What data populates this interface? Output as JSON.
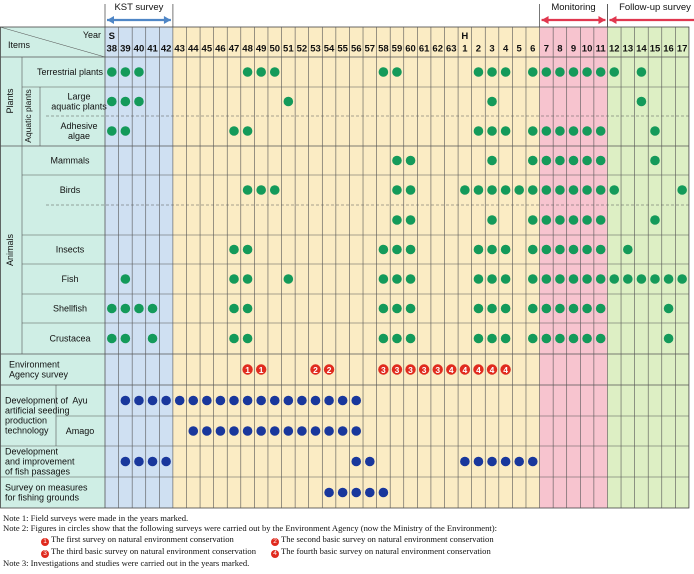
{
  "chart_data": {
    "type": "table",
    "periods": [
      {
        "label": "KST survey",
        "from": "S38",
        "to": "S42"
      },
      {
        "label": "Monitoring",
        "from": "H7",
        "to": "H11"
      },
      {
        "label": "Follow-up survey",
        "from": "H12",
        "to": "H17"
      }
    ],
    "header": {
      "items": "Items",
      "year": "Year",
      "era_showa": "S",
      "era_heisei": "H"
    },
    "years": [
      "38",
      "39",
      "40",
      "41",
      "42",
      "43",
      "44",
      "45",
      "46",
      "47",
      "48",
      "49",
      "50",
      "51",
      "52",
      "53",
      "54",
      "55",
      "56",
      "57",
      "58",
      "59",
      "60",
      "61",
      "62",
      "63",
      "1",
      "2",
      "3",
      "4",
      "5",
      "6",
      "7",
      "8",
      "9",
      "10",
      "11",
      "12",
      "13",
      "14",
      "15",
      "16",
      "17"
    ],
    "groups": {
      "plants": "Plants",
      "aquatic_plants": "Aquatic plants",
      "animals": "Animals"
    },
    "rows": [
      {
        "label": "Terrestrial plants",
        "marks": [
          1,
          1,
          1,
          0,
          0,
          0,
          0,
          0,
          0,
          0,
          1,
          1,
          1,
          0,
          0,
          0,
          0,
          0,
          0,
          0,
          1,
          1,
          0,
          0,
          0,
          0,
          0,
          1,
          1,
          1,
          0,
          1,
          1,
          1,
          1,
          1,
          1,
          1,
          0,
          1,
          0,
          0,
          0
        ]
      },
      {
        "label": "Large aquatic plants",
        "marks": [
          1,
          1,
          1,
          0,
          0,
          0,
          0,
          0,
          0,
          0,
          0,
          0,
          0,
          1,
          0,
          0,
          0,
          0,
          0,
          0,
          0,
          0,
          0,
          0,
          0,
          0,
          0,
          0,
          1,
          0,
          0,
          0,
          0,
          0,
          0,
          0,
          0,
          0,
          0,
          1,
          0,
          0,
          0
        ]
      },
      {
        "label": "Adhesive algae",
        "marks": [
          1,
          1,
          0,
          0,
          0,
          0,
          0,
          0,
          0,
          1,
          1,
          0,
          0,
          0,
          0,
          0,
          0,
          0,
          0,
          0,
          0,
          0,
          0,
          0,
          0,
          0,
          0,
          1,
          1,
          1,
          0,
          1,
          1,
          1,
          1,
          1,
          1,
          0,
          0,
          0,
          1,
          0,
          0
        ]
      },
      {
        "label": "Mammals",
        "marks": [
          0,
          0,
          0,
          0,
          0,
          0,
          0,
          0,
          0,
          0,
          0,
          0,
          0,
          0,
          0,
          0,
          0,
          0,
          0,
          0,
          0,
          1,
          1,
          0,
          0,
          0,
          0,
          0,
          1,
          0,
          0,
          1,
          1,
          1,
          1,
          1,
          1,
          0,
          0,
          0,
          1,
          0,
          0
        ]
      },
      {
        "label": "Birds",
        "marks": [
          0,
          0,
          0,
          0,
          0,
          0,
          0,
          0,
          0,
          0,
          1,
          1,
          1,
          0,
          0,
          0,
          0,
          0,
          0,
          0,
          0,
          1,
          1,
          0,
          0,
          0,
          1,
          1,
          1,
          1,
          1,
          1,
          1,
          1,
          1,
          1,
          1,
          1,
          0,
          0,
          0,
          0,
          1
        ]
      },
      {
        "label": "",
        "marks": [
          0,
          0,
          0,
          0,
          0,
          0,
          0,
          0,
          0,
          0,
          0,
          0,
          0,
          0,
          0,
          0,
          0,
          0,
          0,
          0,
          0,
          1,
          1,
          0,
          0,
          0,
          0,
          0,
          1,
          0,
          0,
          1,
          1,
          1,
          1,
          1,
          1,
          0,
          0,
          0,
          1,
          0,
          0
        ]
      },
      {
        "label": "Insects",
        "marks": [
          0,
          0,
          0,
          0,
          0,
          0,
          0,
          0,
          0,
          1,
          1,
          0,
          0,
          0,
          0,
          0,
          0,
          0,
          0,
          0,
          1,
          1,
          1,
          0,
          0,
          0,
          0,
          1,
          1,
          1,
          0,
          1,
          1,
          1,
          1,
          1,
          1,
          0,
          1,
          0,
          0,
          0,
          0
        ]
      },
      {
        "label": "Fish",
        "marks": [
          0,
          1,
          0,
          0,
          0,
          0,
          0,
          0,
          0,
          1,
          1,
          0,
          0,
          1,
          0,
          0,
          0,
          0,
          0,
          0,
          1,
          1,
          1,
          0,
          0,
          0,
          0,
          1,
          1,
          1,
          0,
          1,
          1,
          1,
          1,
          1,
          1,
          1,
          1,
          1,
          1,
          1,
          1
        ]
      },
      {
        "label": "Shellfish",
        "marks": [
          1,
          1,
          1,
          1,
          0,
          0,
          0,
          0,
          0,
          1,
          1,
          0,
          0,
          0,
          0,
          0,
          0,
          0,
          0,
          0,
          1,
          1,
          1,
          0,
          0,
          0,
          0,
          1,
          1,
          1,
          0,
          1,
          1,
          1,
          1,
          1,
          1,
          0,
          0,
          0,
          0,
          1,
          0
        ]
      },
      {
        "label": "Crustacea",
        "marks": [
          1,
          1,
          0,
          1,
          0,
          0,
          0,
          0,
          0,
          1,
          1,
          0,
          0,
          0,
          0,
          0,
          0,
          0,
          0,
          0,
          1,
          1,
          1,
          0,
          0,
          0,
          0,
          1,
          1,
          1,
          0,
          1,
          1,
          1,
          1,
          1,
          1,
          0,
          0,
          0,
          0,
          1,
          0
        ]
      },
      {
        "label": "Environment Agency survey",
        "marks": [
          0,
          0,
          0,
          0,
          0,
          0,
          0,
          0,
          0,
          0,
          1,
          1,
          0,
          0,
          0,
          2,
          2,
          0,
          0,
          0,
          3,
          3,
          3,
          3,
          3,
          4,
          4,
          4,
          4,
          4,
          0,
          0,
          0,
          0,
          0,
          0,
          0,
          0,
          0,
          0,
          0,
          0,
          0
        ]
      },
      {
        "label": "Development of artificial seeding production technology",
        "sub": "Ayu",
        "marks": [
          0,
          1,
          1,
          1,
          1,
          1,
          1,
          1,
          1,
          1,
          1,
          1,
          1,
          1,
          1,
          1,
          1,
          1,
          1,
          0,
          0,
          0,
          0,
          0,
          0,
          0,
          0,
          0,
          0,
          0,
          0,
          0,
          0,
          0,
          0,
          0,
          0,
          0,
          0,
          0,
          0,
          0,
          0
        ]
      },
      {
        "label": "",
        "sub": "Amago",
        "marks": [
          0,
          0,
          0,
          0,
          0,
          0,
          1,
          1,
          1,
          1,
          1,
          1,
          1,
          1,
          1,
          1,
          1,
          1,
          1,
          0,
          0,
          0,
          0,
          0,
          0,
          0,
          0,
          0,
          0,
          0,
          0,
          0,
          0,
          0,
          0,
          0,
          0,
          0,
          0,
          0,
          0,
          0,
          0
        ]
      },
      {
        "label": "Development and improvement of fish passages",
        "marks": [
          0,
          1,
          1,
          1,
          1,
          0,
          0,
          0,
          0,
          0,
          0,
          0,
          0,
          0,
          0,
          0,
          0,
          0,
          1,
          1,
          0,
          0,
          0,
          0,
          0,
          0,
          1,
          1,
          1,
          1,
          1,
          1,
          0,
          0,
          0,
          0,
          0,
          0,
          0,
          0,
          0,
          0,
          0
        ]
      },
      {
        "label": "Survey on measures for fishing grounds",
        "marks": [
          0,
          0,
          0,
          0,
          0,
          0,
          0,
          0,
          0,
          0,
          0,
          0,
          0,
          0,
          0,
          0,
          1,
          1,
          1,
          1,
          1,
          0,
          0,
          0,
          0,
          0,
          0,
          0,
          0,
          0,
          0,
          0,
          0,
          0,
          0,
          0,
          0,
          0,
          0,
          0,
          0,
          0,
          0
        ]
      }
    ],
    "colors": {
      "kst": "#cfe0f2",
      "mid": "#fbecc4",
      "monitoring": "#f7c4cf",
      "followup": "#ddefc4",
      "header": "#cfeee5",
      "dot": "#149a5a",
      "seeding_dot": "#19379c",
      "survey_mark": "#e02a1e",
      "arrow_blue": "#4f86c6",
      "arrow_red": "#e0374f"
    }
  },
  "notes": {
    "note1": "Note 1: Field surveys were made in the years marked.",
    "note2": "Note 2: Figures in circles show that the following surveys were carried out by the Environment Agency (now the Ministry of the Environment):",
    "survey1": "The first survey on natural environment conservation",
    "survey2": "The second basic survey on natural environment conservation",
    "survey3": "The third basic survey on natural environment conservation",
    "survey4": "The fourth basic survey on natural environment conservation",
    "note3": "Note 3: Investigations and studies were carried out in the years marked."
  }
}
